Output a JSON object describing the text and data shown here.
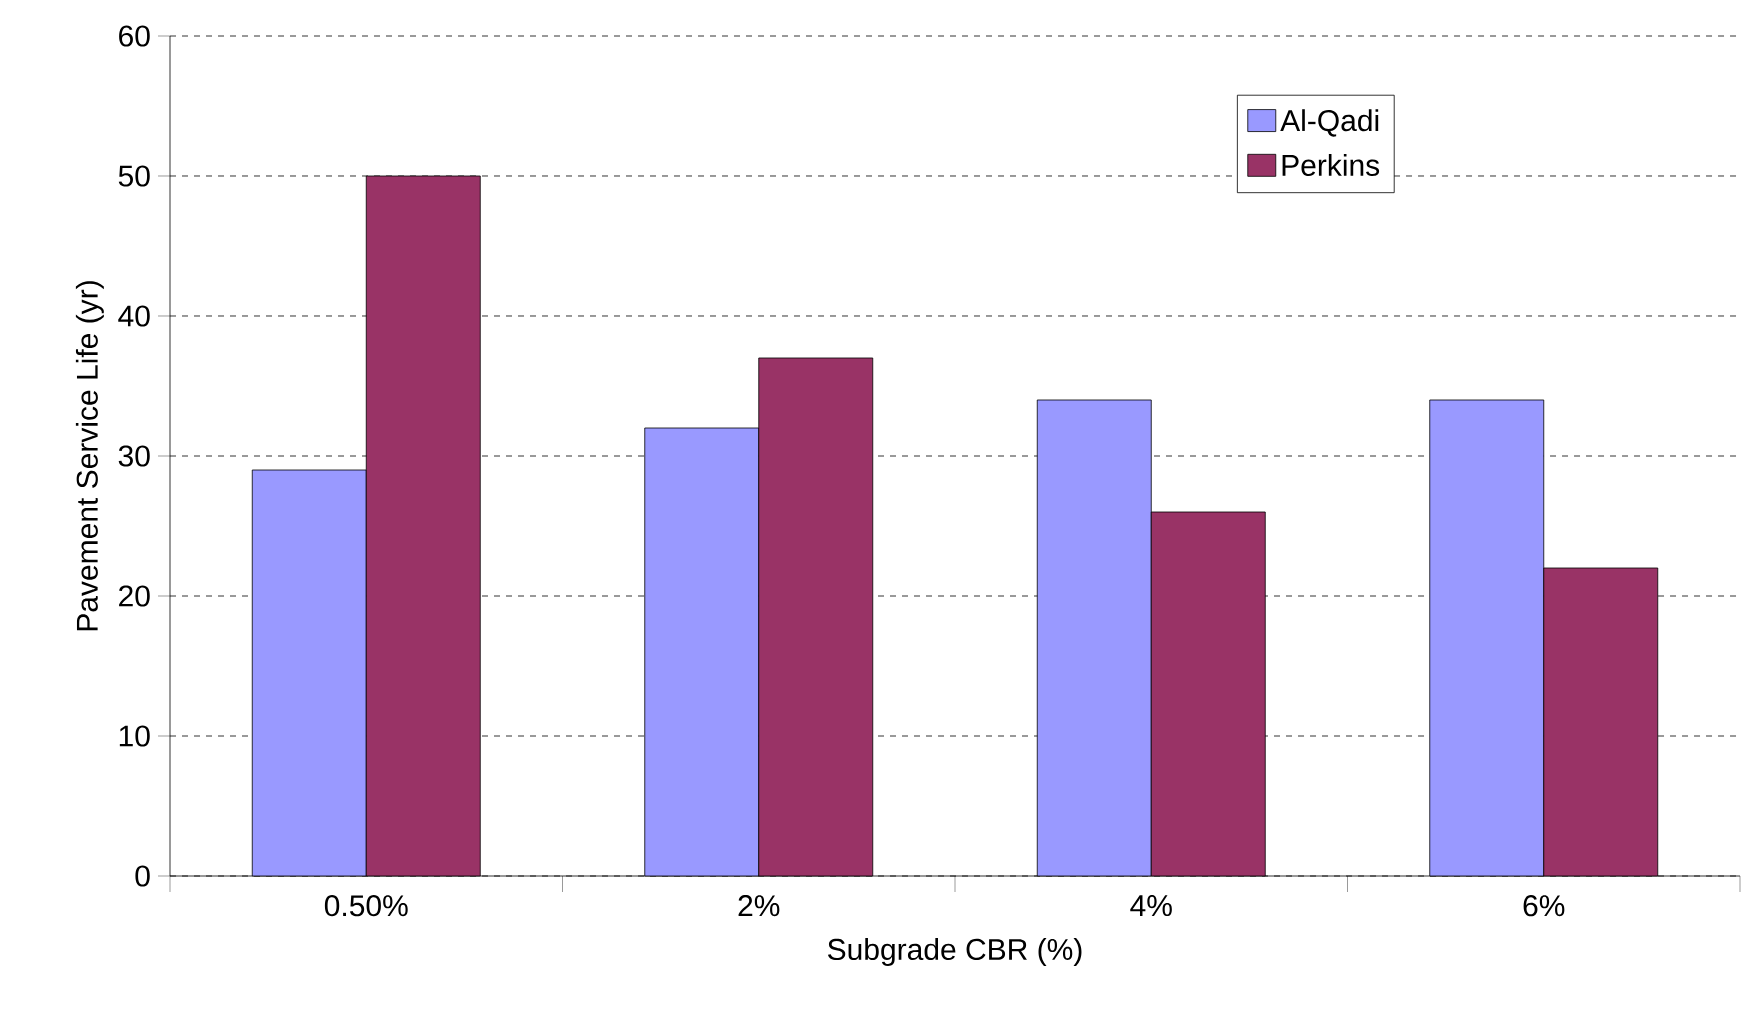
{
  "chart_data": {
    "type": "bar",
    "xlabel": "Subgrade CBR (%)",
    "ylabel": "Pavement Service Life (yr)",
    "categories": [
      "0.50%",
      "2%",
      "4%",
      "6%"
    ],
    "series": [
      {
        "name": "Al-Qadi",
        "color": "#9999ff",
        "values": [
          29,
          32,
          34,
          34
        ]
      },
      {
        "name": "Perkins",
        "color": "#993366",
        "values": [
          50,
          37,
          26,
          22
        ]
      }
    ],
    "ylim": [
      0,
      60
    ],
    "yticks": [
      0,
      10,
      20,
      30,
      40,
      50,
      60
    ],
    "grid": "y",
    "legend": "top right"
  }
}
